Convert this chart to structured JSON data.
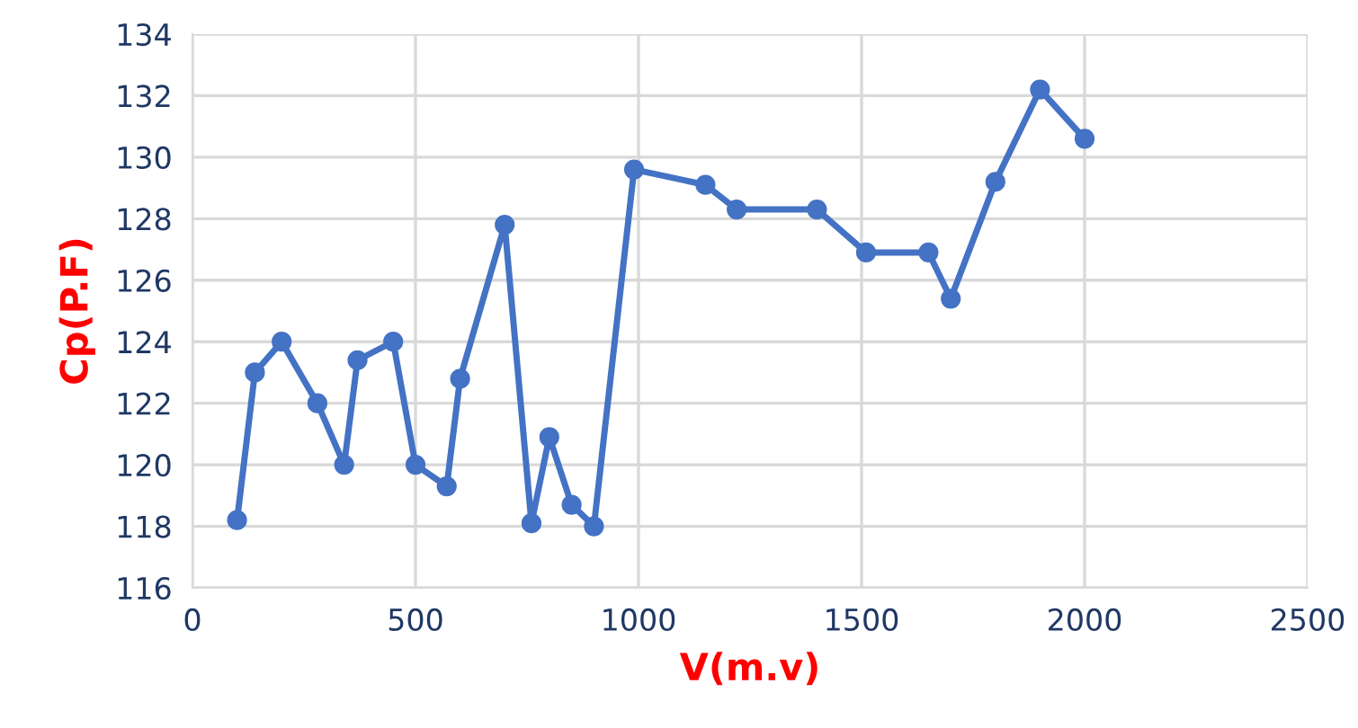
{
  "chart_data": {
    "type": "line",
    "xlabel": "V(m.v)",
    "ylabel": "Cp(P.F)",
    "x": [
      100,
      140,
      200,
      280,
      340,
      370,
      450,
      500,
      570,
      600,
      700,
      760,
      800,
      850,
      900,
      990,
      1150,
      1220,
      1400,
      1510,
      1650,
      1700,
      1800,
      1900,
      2000
    ],
    "series": [
      {
        "color": "#4472c4",
        "values": [
          118.2,
          123.0,
          124.0,
          122.0,
          120.0,
          123.4,
          124.0,
          120.0,
          119.3,
          122.8,
          127.8,
          118.1,
          120.9,
          118.7,
          118.0,
          129.6,
          129.1,
          128.3,
          128.3,
          126.9,
          126.9,
          125.4,
          129.2,
          132.2,
          130.6
        ]
      }
    ],
    "xlim": [
      0,
      2500
    ],
    "xticks": [
      0,
      500,
      1000,
      1500,
      2000,
      2500
    ],
    "ylim": [
      116,
      134
    ],
    "yticks": [
      116,
      118,
      120,
      122,
      124,
      126,
      128,
      130,
      132,
      134
    ],
    "grid": true,
    "marker": "circle",
    "line_style": "solid"
  }
}
